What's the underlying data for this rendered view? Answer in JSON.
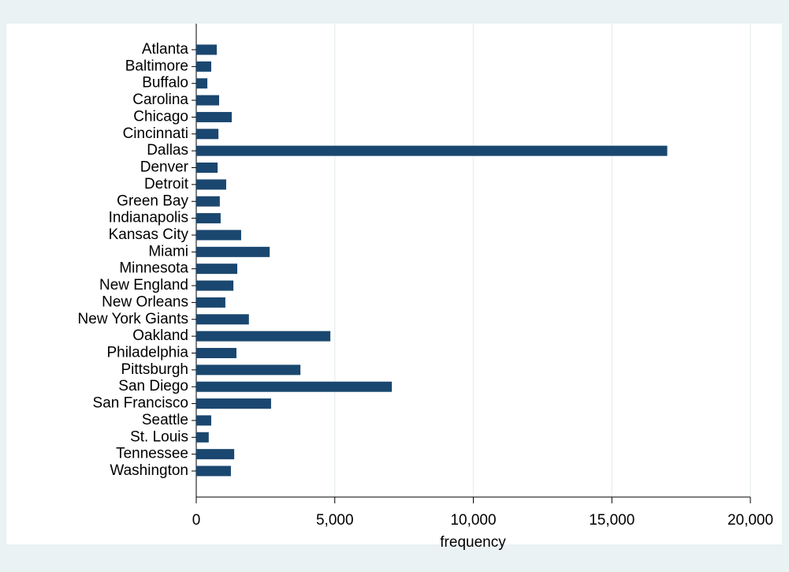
{
  "chart_data": {
    "type": "barh",
    "categories": [
      "Atlanta",
      "Baltimore",
      "Buffalo",
      "Carolina",
      "Chicago",
      "Cincinnati",
      "Dallas",
      "Denver",
      "Detroit",
      "Green Bay",
      "Indianapolis",
      "Kansas City",
      "Miami",
      "Minnesota",
      "New England",
      "New Orleans",
      "New York Giants",
      "Oakland",
      "Philadelphia",
      "Pittsburgh",
      "San Diego",
      "San Francisco",
      "Seattle",
      "St. Louis",
      "Tennessee",
      "Washington"
    ],
    "values": [
      740,
      540,
      400,
      825,
      1280,
      800,
      17000,
      770,
      1080,
      850,
      880,
      1620,
      2650,
      1480,
      1340,
      1050,
      1900,
      4840,
      1450,
      3760,
      7060,
      2700,
      540,
      450,
      1370,
      1250
    ],
    "color": "#1a476f",
    "x_label": "frequency",
    "xlim": [
      0,
      20000
    ],
    "xticks": [
      0,
      {
        "value": 5000,
        "label": "5,000"
      },
      {
        "value": 10000,
        "label": "10,000"
      },
      {
        "value": 15000,
        "label": "15,000"
      },
      {
        "value": 20000,
        "label": "20,000"
      }
    ],
    "grid": true
  }
}
